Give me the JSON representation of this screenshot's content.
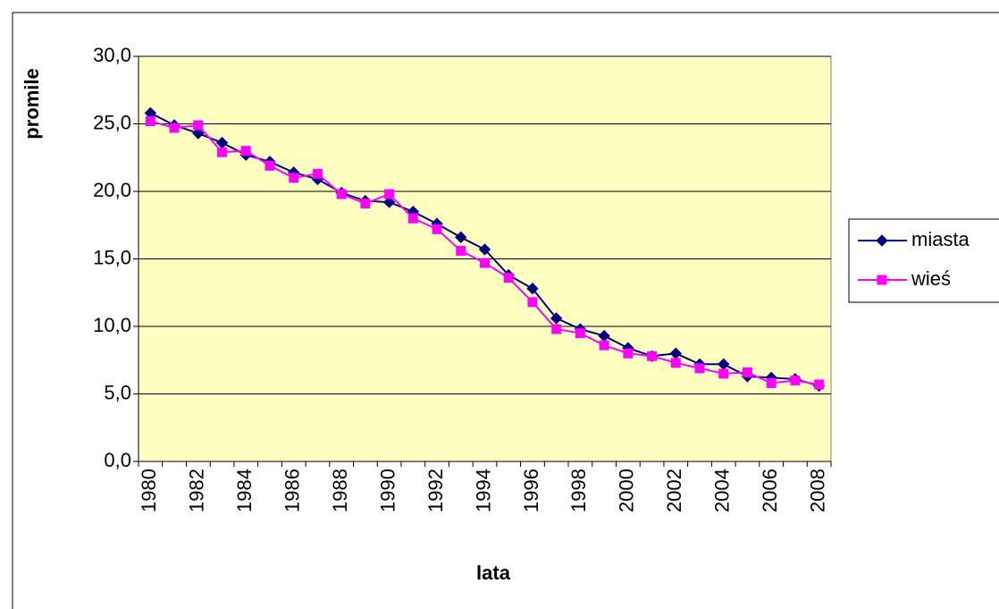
{
  "chart_data": {
    "type": "line",
    "x_label": "lata",
    "y_label": "promile",
    "categories": [
      "1980",
      null,
      "1982",
      null,
      "1984",
      null,
      "1986",
      null,
      "1988",
      null,
      "1990",
      null,
      "1992",
      null,
      "1994",
      null,
      "1996",
      null,
      "1998",
      null,
      "2000",
      null,
      "2002",
      null,
      "2004",
      null,
      "2006",
      null,
      "2008"
    ],
    "series": [
      {
        "name": "miasta",
        "color": "#000080",
        "marker": "diamond",
        "values": [
          25.8,
          24.9,
          24.3,
          23.6,
          22.7,
          22.2,
          21.4,
          20.9,
          19.9,
          19.3,
          19.2,
          18.5,
          17.6,
          16.6,
          15.7,
          13.8,
          12.8,
          10.6,
          9.8,
          9.3,
          8.4,
          7.8,
          8.0,
          7.2,
          7.2,
          6.3,
          6.2,
          6.1,
          5.6
        ]
      },
      {
        "name": "wieś",
        "color": "#ff00ff",
        "marker": "square",
        "values": [
          25.2,
          24.7,
          24.9,
          22.9,
          23.0,
          21.9,
          21.0,
          21.3,
          19.8,
          19.1,
          19.8,
          18.0,
          17.2,
          15.6,
          14.7,
          13.6,
          11.8,
          9.8,
          9.5,
          8.6,
          8.0,
          7.8,
          7.3,
          6.9,
          6.5,
          6.6,
          5.8,
          6.0,
          5.7
        ]
      }
    ],
    "ylim": [
      0,
      30
    ],
    "yticks": [
      {
        "value": 0,
        "label": "0,0"
      },
      {
        "value": 5,
        "label": "5,0"
      },
      {
        "value": 10,
        "label": "10,0"
      },
      {
        "value": 15,
        "label": "15,0"
      },
      {
        "value": 20,
        "label": "20,0"
      },
      {
        "value": 25,
        "label": "25,0"
      },
      {
        "value": 30,
        "label": "30,0"
      }
    ],
    "grid": true,
    "plot_background": "#ffffc0",
    "legend": "right"
  }
}
